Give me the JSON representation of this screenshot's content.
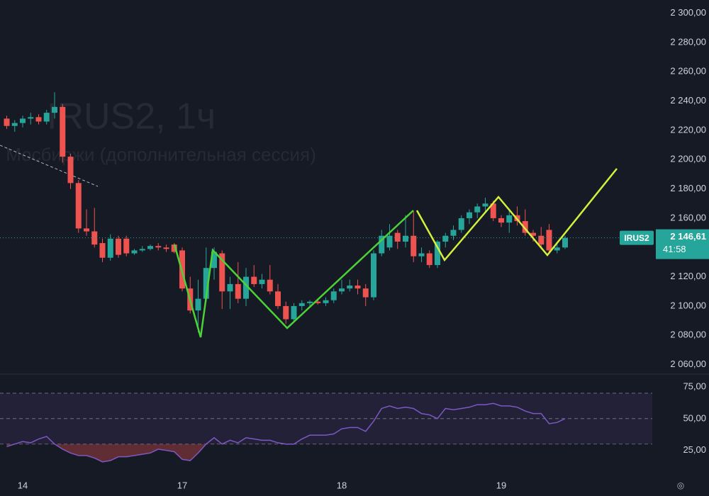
{
  "chart_data": [
    {
      "type": "candlestick",
      "watermark": "IRUS2, 1ч",
      "watermark_subtitle": "с Мосбиржи (дополнительная сессия)",
      "symbol": "IRUS2",
      "last_label": "2 146,61",
      "countdown": "41:58",
      "categories": [
        null,
        null,
        "14",
        null,
        null,
        null,
        null,
        null,
        null,
        null,
        null,
        null,
        null,
        null,
        null,
        null,
        null,
        null,
        null,
        null,
        null,
        null,
        "17",
        null,
        null,
        null,
        null,
        null,
        null,
        null,
        null,
        null,
        null,
        null,
        null,
        null,
        null,
        null,
        null,
        null,
        null,
        null,
        "18",
        null,
        null,
        null,
        null,
        null,
        null,
        null,
        null,
        null,
        null,
        null,
        null,
        null,
        null,
        null,
        null,
        null,
        null,
        null,
        "19",
        null,
        null,
        null,
        null,
        null,
        null,
        null,
        null
      ],
      "open": [
        2228,
        2223,
        2225,
        2228,
        2229,
        2226,
        2232,
        2236,
        2202,
        2184,
        2153,
        2151,
        2143,
        2133,
        2146,
        2146,
        2136,
        2138,
        2139,
        2141,
        2140,
        2142,
        2138,
        2112,
        2097,
        2105,
        2126,
        2136,
        2110,
        2115,
        2105,
        2120,
        2115,
        2118,
        2110,
        2100,
        2091,
        2100,
        2102,
        2103,
        2102,
        2104,
        2110,
        2112,
        2114,
        2112,
        2106,
        2136,
        2140,
        2150,
        2144,
        2148,
        2134,
        2136,
        2128,
        2144,
        2148,
        2152,
        2160,
        2164,
        2168,
        2170,
        2160,
        2157,
        2162,
        2158,
        2150,
        2148,
        2152,
        2138,
        2140
      ],
      "high": [
        2230,
        2227,
        2230,
        2232,
        2231,
        2234,
        2246,
        2238,
        2204,
        2186,
        2166,
        2167,
        2146,
        2149,
        2148,
        2148,
        2139,
        2141,
        2142,
        2143,
        2142,
        2143,
        2140,
        2120,
        2118,
        2140,
        2140,
        2138,
        2120,
        2130,
        2126,
        2128,
        2122,
        2128,
        2115,
        2103,
        2102,
        2104,
        2104,
        2105,
        2106,
        2112,
        2118,
        2118,
        2118,
        2115,
        2138,
        2152,
        2156,
        2152,
        2162,
        2165,
        2140,
        2138,
        2145,
        2150,
        2155,
        2162,
        2166,
        2170,
        2174,
        2172,
        2162,
        2166,
        2168,
        2166,
        2152,
        2154,
        2156,
        2142,
        2148
      ],
      "low": [
        2221,
        2219,
        2222,
        2224,
        2224,
        2224,
        2228,
        2198,
        2180,
        2150,
        2148,
        2140,
        2130,
        2131,
        2133,
        2134,
        2135,
        2137,
        2138,
        2138,
        2137,
        2136,
        2110,
        2095,
        2082,
        2103,
        2118,
        2098,
        2098,
        2102,
        2100,
        2113,
        2112,
        2108,
        2098,
        2088,
        2089,
        2097,
        2100,
        2101,
        2100,
        2102,
        2108,
        2110,
        2108,
        2100,
        2104,
        2134,
        2138,
        2139,
        2140,
        2130,
        2130,
        2126,
        2126,
        2140,
        2145,
        2150,
        2156,
        2160,
        2164,
        2158,
        2154,
        2150,
        2155,
        2148,
        2144,
        2140,
        2136,
        2136,
        2139
      ],
      "close": [
        2223,
        2225,
        2228,
        2229,
        2226,
        2232,
        2236,
        2202,
        2184,
        2153,
        2151,
        2142,
        2133,
        2146,
        2135,
        2136,
        2138,
        2139,
        2141,
        2140,
        2139,
        2137,
        2112,
        2097,
        2105,
        2126,
        2137,
        2110,
        2115,
        2105,
        2120,
        2115,
        2118,
        2110,
        2100,
        2091,
        2100,
        2102,
        2103,
        2102,
        2104,
        2110,
        2112,
        2114,
        2112,
        2106,
        2136,
        2148,
        2148,
        2144,
        2148,
        2134,
        2136,
        2128,
        2144,
        2148,
        2152,
        2160,
        2164,
        2168,
        2170,
        2160,
        2157,
        2162,
        2158,
        2150,
        2148,
        2142,
        2138,
        2140,
        2146.61
      ],
      "up_color": "#26a69a",
      "down_color": "#ef5350",
      "ylim": [
        2054,
        2309
      ],
      "yticks": [
        {
          "value": 2060,
          "label": "2 060,00"
        },
        {
          "value": 2080,
          "label": "2 080,00"
        },
        {
          "value": 2100,
          "label": "2 100,00"
        },
        {
          "value": 2120,
          "label": "2 120,00"
        },
        {
          "value": 2140,
          "label": "2 140,00"
        },
        {
          "value": 2160,
          "label": "2 160,00"
        },
        {
          "value": 2180,
          "label": "2 180,00"
        },
        {
          "value": 2200,
          "label": "2 200,00"
        },
        {
          "value": 2220,
          "label": "2 220,00"
        },
        {
          "value": 2240,
          "label": "2 240,00"
        },
        {
          "value": 2260,
          "label": "2 260,00"
        },
        {
          "value": 2280,
          "label": "2 280,00"
        },
        {
          "value": 2300,
          "label": "2 300,00"
        }
      ],
      "grid": false
    },
    {
      "type": "line",
      "values": [
        28,
        30,
        32,
        31,
        34,
        36,
        30,
        26,
        23,
        21,
        21,
        19,
        16,
        17,
        20,
        20,
        21,
        22,
        23,
        26,
        25,
        24,
        18,
        17,
        23,
        30,
        35,
        30,
        33,
        31,
        35,
        34,
        33,
        33,
        31,
        30,
        30,
        34,
        37,
        37,
        37,
        38,
        42,
        43,
        43,
        40,
        48,
        58,
        60,
        58,
        59,
        58,
        54,
        53,
        50,
        58,
        57,
        58,
        59,
        61,
        61,
        62,
        60,
        60,
        59,
        56,
        54,
        54,
        46,
        47,
        50
      ],
      "color": "#7e57c2",
      "bands": [
        70,
        50,
        30
      ],
      "ylim": [
        7,
        85
      ],
      "yticks": [
        {
          "value": 25,
          "label": "25,00"
        },
        {
          "value": 50,
          "label": "50,00"
        },
        {
          "value": 75,
          "label": "75,00"
        }
      ],
      "grid": false
    }
  ]
}
